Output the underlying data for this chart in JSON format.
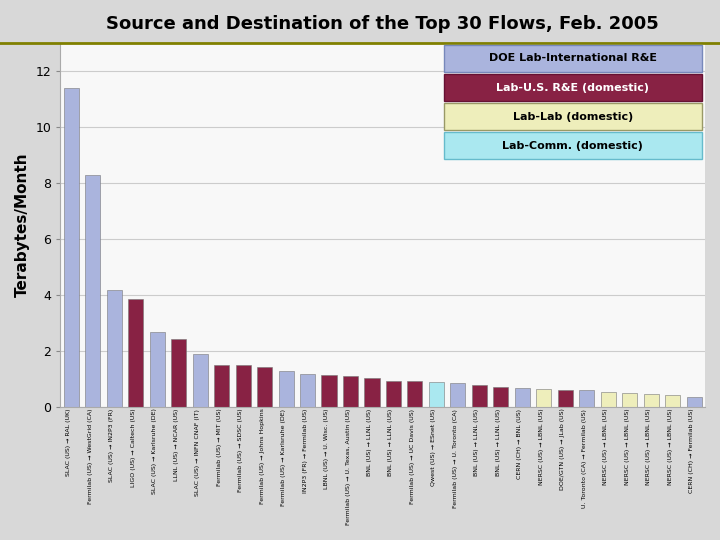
{
  "title": "Source and Destination of the Top 30 Flows, Feb. 2005",
  "ylabel": "Terabytes/Month",
  "ylim": [
    0,
    13.0
  ],
  "yticks": [
    0,
    2,
    4,
    6,
    8,
    10,
    12
  ],
  "bars": [
    {
      "label": "SLAC (US) → RAL (UK)",
      "value": 11.4,
      "color": "#aab4dd"
    },
    {
      "label": "Fermilab (US) → WestGrid (CA)",
      "value": 8.3,
      "color": "#aab4dd"
    },
    {
      "label": "SLAC (US) → IN2P3 (FR)",
      "value": 4.2,
      "color": "#aab4dd"
    },
    {
      "label": "LIGO (US) → Caltech (US)",
      "value": 3.85,
      "color": "#882244"
    },
    {
      "label": "SLAC (US) → Karlsruhe (DE)",
      "value": 2.7,
      "color": "#aab4dd"
    },
    {
      "label": "LLNL (US) → NCAR (US)",
      "value": 2.45,
      "color": "#882244"
    },
    {
      "label": "SLAC (US) → INFN CNAF (IT)",
      "value": 1.9,
      "color": "#aab4dd"
    },
    {
      "label": "Fermilab (US) → MIT (US)",
      "value": 1.5,
      "color": "#882244"
    },
    {
      "label": "Fermilab (US) → SDSC (US)",
      "value": 1.5,
      "color": "#882244"
    },
    {
      "label": "Fermilab (US) → Johns Hopkins",
      "value": 1.45,
      "color": "#882244"
    },
    {
      "label": "Fermilab (US) → Karlsruhe (DE)",
      "value": 1.3,
      "color": "#aab4dd"
    },
    {
      "label": "IN2P3 (FR) → Fermilab (US)",
      "value": 1.2,
      "color": "#aab4dd"
    },
    {
      "label": "LBNL (US) → U. Wisc. (US)",
      "value": 1.15,
      "color": "#882244"
    },
    {
      "label": "Fermilab (US) → U. Texas, Austin (US)",
      "value": 1.1,
      "color": "#882244"
    },
    {
      "label": "BNL (US) → LLNL (US)",
      "value": 1.05,
      "color": "#882244"
    },
    {
      "label": "BNL (US) → LLNL (US)",
      "value": 0.95,
      "color": "#882244"
    },
    {
      "label": "Fermilab (US) → UC Davis (US)",
      "value": 0.95,
      "color": "#882244"
    },
    {
      "label": "Qwest (US) → ESnet (US)",
      "value": 0.9,
      "color": "#aae8f0"
    },
    {
      "label": "Fermilab (US) → U. Toronto (CA)",
      "value": 0.85,
      "color": "#aab4dd"
    },
    {
      "label": "BNL (US) → LLNL (US)",
      "value": 0.78,
      "color": "#882244"
    },
    {
      "label": "BNL (US) → LLNL (US)",
      "value": 0.72,
      "color": "#882244"
    },
    {
      "label": "CERN (CH) → BNL (US)",
      "value": 0.68,
      "color": "#aab4dd"
    },
    {
      "label": "NERSC (US) → LBNL (US)",
      "value": 0.65,
      "color": "#eeeebb"
    },
    {
      "label": "DOE/GTN (US) → JLab (US)",
      "value": 0.62,
      "color": "#882244"
    },
    {
      "label": "U. Toronto (CA) → Fermilab (US)",
      "value": 0.6,
      "color": "#aab4dd"
    },
    {
      "label": "NERSC (US) → LBNL (US)",
      "value": 0.55,
      "color": "#eeeebb"
    },
    {
      "label": "NERSC (US) → LBNL (US)",
      "value": 0.5,
      "color": "#eeeebb"
    },
    {
      "label": "NERSC (US) → LBNL (US)",
      "value": 0.48,
      "color": "#eeeebb"
    },
    {
      "label": "NERSC (US) → LBNL (US)",
      "value": 0.43,
      "color": "#eeeebb"
    },
    {
      "label": "CERN (CH) → Fermilab (US)",
      "value": 0.38,
      "color": "#aab4dd"
    }
  ],
  "legend": [
    {
      "label": "DOE Lab-International R&E",
      "facecolor": "#aab4dd",
      "edgecolor": "#7788bb",
      "textcolor": "black"
    },
    {
      "label": "Lab-U.S. R&E (domestic)",
      "facecolor": "#882244",
      "edgecolor": "#661133",
      "textcolor": "white"
    },
    {
      "label": "Lab-Lab (domestic)",
      "facecolor": "#eeeebb",
      "edgecolor": "#999966",
      "textcolor": "black"
    },
    {
      "label": "Lab-Comm. (domestic)",
      "facecolor": "#aae8f0",
      "edgecolor": "#66bbcc",
      "textcolor": "black"
    }
  ],
  "bg_color": "#d8d8d8",
  "plot_bg": "#f8f8f8",
  "title_fontsize": 13,
  "ylabel_fontsize": 11,
  "title_line_color": "#808000",
  "grid_color": "#cccccc"
}
